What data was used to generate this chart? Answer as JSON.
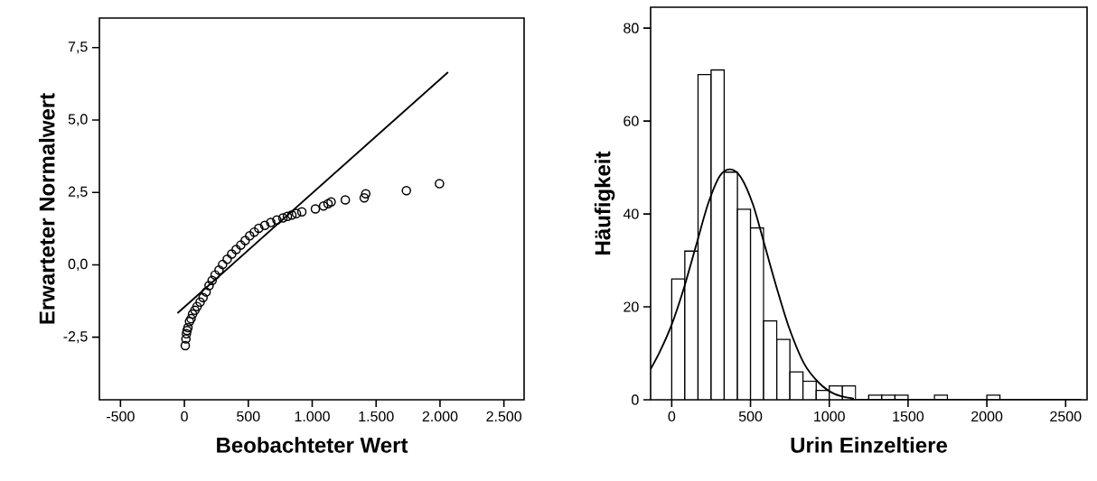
{
  "chart_data": [
    {
      "type": "scatter",
      "xlabel": "Beobachteter Wert",
      "ylabel": "Erwarteter Normalwert",
      "xlim": [
        -665,
        2658
      ],
      "ylim": [
        -4.66,
        8.52
      ],
      "xticks": [
        -500,
        0,
        500,
        {
          "value": 1000,
          "label": "1.000"
        },
        {
          "value": 1500,
          "label": "1.500"
        },
        {
          "value": 2000,
          "label": "2.000"
        },
        {
          "value": 2500,
          "label": "2.500"
        }
      ],
      "yticks": [
        {
          "value": -2.5,
          "label": "-2,5"
        },
        {
          "value": 0,
          "label": "0,0"
        },
        {
          "value": 2.5,
          "label": "2,5"
        },
        {
          "value": 5,
          "label": "5,0"
        },
        {
          "value": 7.5,
          "label": "7,5"
        }
      ],
      "grid": false,
      "series": [
        {
          "marker": "circle",
          "color": "#000000",
          "x": [
            7,
            12,
            16,
            21,
            28,
            40,
            52,
            64,
            82,
            99,
            123,
            146,
            170,
            193,
            217,
            240,
            271,
            299,
            335,
            370,
            405,
            441,
            476,
            511,
            547,
            582,
            629,
            676,
            724,
            771,
            806,
            841,
            877,
            919,
            1025,
            1089,
            1124,
            1148,
            1259,
            1407,
            1419,
            1737,
            1996
          ],
          "values": [
            -2.79,
            -2.56,
            -2.38,
            -2.27,
            -2.17,
            -1.96,
            -1.86,
            -1.7,
            -1.57,
            -1.44,
            -1.29,
            -1.13,
            -0.94,
            -0.72,
            -0.54,
            -0.35,
            -0.18,
            0.01,
            0.19,
            0.37,
            0.53,
            0.68,
            0.84,
            1.0,
            1.13,
            1.26,
            1.36,
            1.46,
            1.55,
            1.62,
            1.67,
            1.72,
            1.77,
            1.83,
            1.93,
            2.03,
            2.11,
            2.17,
            2.24,
            2.31,
            2.45,
            2.56,
            2.8
          ]
        },
        {
          "type": "line",
          "color": "#000000",
          "x": [
            -54,
            2063
          ],
          "values": [
            -1.67,
            6.65
          ]
        }
      ]
    },
    {
      "type": "histogram",
      "xlabel": "Urin Einzeltiere",
      "ylabel": "Häufigkeit",
      "xlim": [
        -134,
        2636
      ],
      "ylim": [
        0,
        84.5
      ],
      "xticks": [
        0,
        500,
        1000,
        1500,
        2000,
        2500
      ],
      "yticks": [
        0,
        20,
        40,
        60,
        80
      ],
      "grid": false,
      "series": [
        {
          "color": "#ffffff",
          "bins": [
            0,
            83,
            167,
            250,
            333,
            417,
            500,
            583,
            667,
            750,
            833,
            917,
            1000,
            1083,
            1167,
            1250,
            1333,
            1417,
            1500,
            1583,
            1667,
            1750,
            1833,
            1917,
            2000,
            2083
          ],
          "values": [
            26,
            32,
            70,
            71,
            49,
            41,
            37,
            17,
            13,
            6,
            4,
            2,
            3,
            3,
            0,
            1,
            1,
            1,
            0,
            0,
            1,
            0,
            0,
            0,
            1
          ]
        },
        {
          "type": "line",
          "color": "#000000",
          "x": [
            -134,
            -76,
            0,
            76,
            153,
            229,
            306,
            372,
            439,
            516,
            592,
            668,
            745,
            840,
            936,
            1031,
            1146,
            1260,
            2600
          ],
          "values": [
            6.6,
            10.3,
            16.2,
            23.9,
            33.0,
            42.0,
            48.2,
            49.6,
            47.9,
            42.0,
            33.0,
            23.9,
            15.5,
            7.8,
            3.6,
            1.3,
            0.3,
            0,
            0
          ]
        }
      ]
    }
  ]
}
